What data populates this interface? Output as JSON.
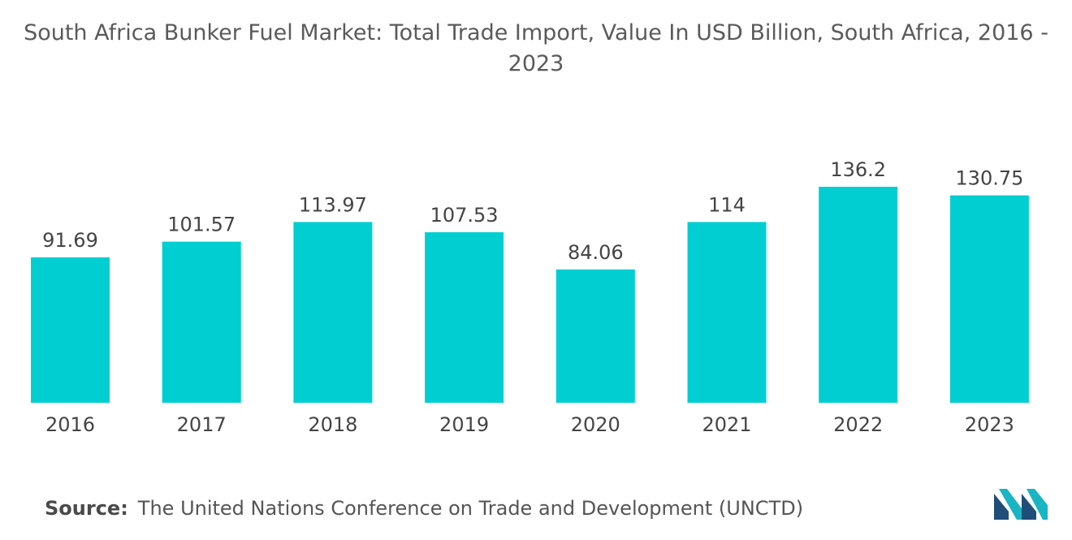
{
  "chart_data": {
    "type": "bar",
    "title": "South Africa Bunker Fuel Market: Total Trade Import, Value In USD Billion, South Africa, 2016 - 2023",
    "categories": [
      "2016",
      "2017",
      "2018",
      "2019",
      "2020",
      "2021",
      "2022",
      "2023"
    ],
    "values": [
      91.69,
      101.57,
      113.97,
      107.53,
      84.06,
      114,
      136.2,
      130.75
    ],
    "value_labels": [
      "91.69",
      "101.57",
      "113.97",
      "107.53",
      "84.06",
      "114",
      "136.2",
      "130.75"
    ],
    "xlabel": "",
    "ylabel": "",
    "ylim": [
      0,
      136.2
    ],
    "grid": false,
    "legend": "none",
    "bar_color": "#00CED1"
  },
  "source": {
    "label": "Source:",
    "text": "The United Nations Conference on Trade and Development (UNCTD)"
  },
  "colors": {
    "bar": "#00CED1",
    "logo_dark": "#1f4e79",
    "logo_light": "#19b5c2"
  }
}
